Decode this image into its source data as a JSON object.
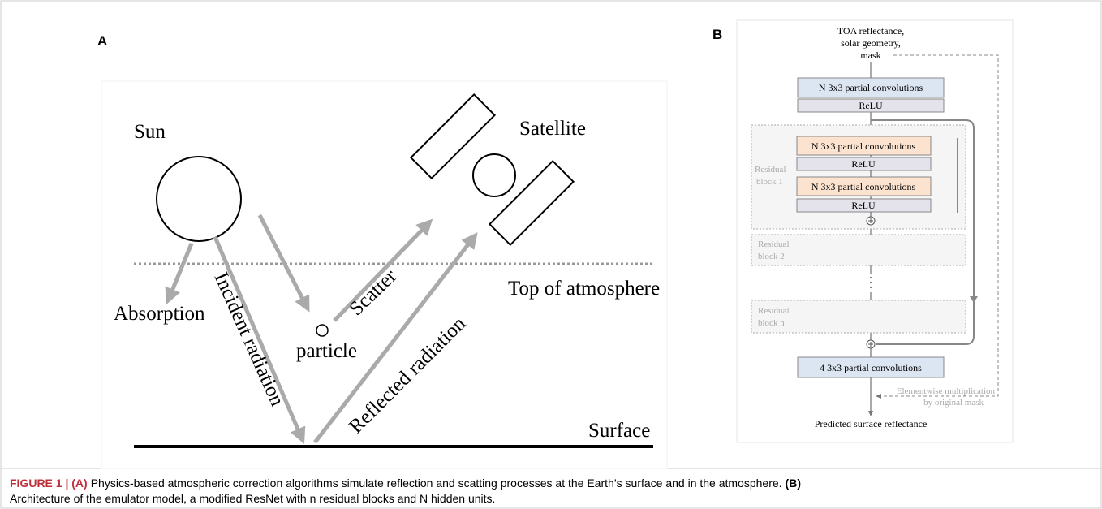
{
  "panel_a": {
    "label": "A",
    "sun": "Sun",
    "satellite": "Satellite",
    "top_of_atmosphere": "Top of atmosphere",
    "surface": "Surface",
    "absorption": "Absorption",
    "incident": "Incident radiation",
    "scatter": "Scatter",
    "particle": "particle",
    "reflected": "Reflected radiation"
  },
  "panel_b": {
    "label": "B",
    "input": [
      "TOA reflectance,",
      "solar geometry,",
      "mask"
    ],
    "conv_first": "N 3x3 partial convolutions",
    "relu_first": "ReLU",
    "block1_conv_a": "N 3x3 partial convolutions",
    "block1_relu_a": "ReLU",
    "block1_conv_b": "N 3x3 partial convolutions",
    "block1_relu_b": "ReLU",
    "block1_label": [
      "Residual",
      "block 1"
    ],
    "block2_label": [
      "Residual",
      "block 2"
    ],
    "blockn_label": [
      "Residual",
      "block n"
    ],
    "conv_last": "4 3x3 partial convolutions",
    "mask_note": [
      "Elementwise multiplication",
      "by original mask"
    ],
    "output": "Predicted surface reflectance"
  },
  "caption": {
    "parts": [
      "FIGURE 1 | (A)",
      "Physics-based atmospheric correction algorithms simulate reflection and scatting processes at the Earth’s surface and in the atmosphere.",
      "(B)"
    ],
    "line2": "Architecture of the emulator model, a modified ResNet with n residual blocks and N hidden units."
  }
}
